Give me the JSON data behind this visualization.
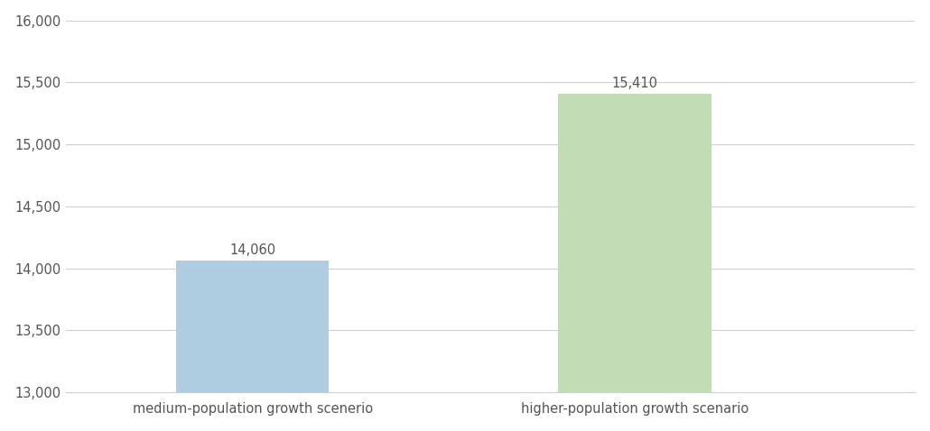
{
  "categories": [
    "medium-population growth scenerio",
    "higher-population growth scenario"
  ],
  "values": [
    14060,
    15410
  ],
  "bar_colors": [
    "#aecde1",
    "#c2ddb5"
  ],
  "bar_width": 0.18,
  "ylim": [
    13000,
    16000
  ],
  "yticks": [
    13000,
    13500,
    14000,
    14500,
    15000,
    15500,
    16000
  ],
  "label_fontsize": 10.5,
  "tick_fontsize": 10.5,
  "xlabel_fontsize": 10.5,
  "background_color": "#ffffff",
  "grid_color": "#d0d0d0",
  "text_color": "#555555",
  "bar_labels": [
    "14,060",
    "15,410"
  ],
  "x_positions": [
    0.22,
    0.67
  ],
  "xlim": [
    0.0,
    1.0
  ]
}
